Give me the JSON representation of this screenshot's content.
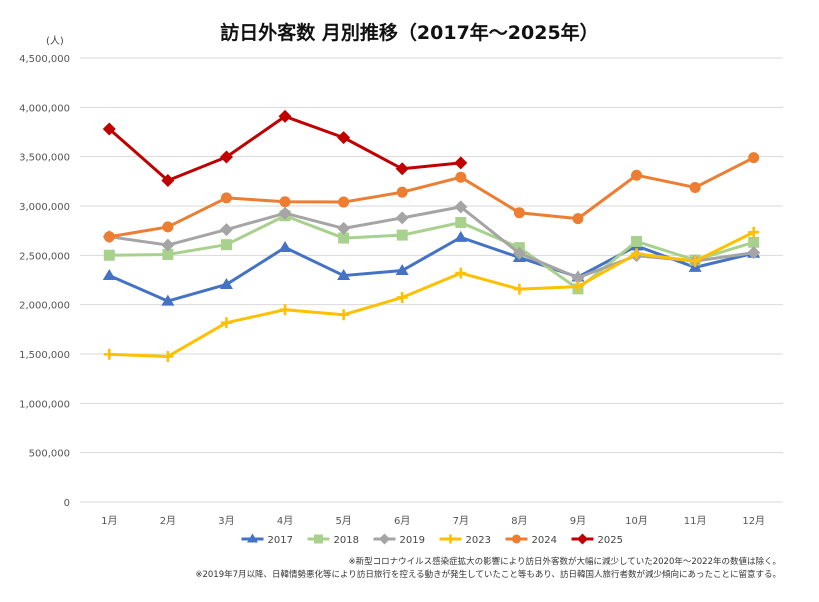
{
  "chart_data": {
    "type": "line",
    "title": "訪日外客数 月別推移（2017年～2025年）",
    "ylabel": "(人)",
    "categories": [
      "1月",
      "2月",
      "3月",
      "4月",
      "5月",
      "6月",
      "7月",
      "8月",
      "9月",
      "10月",
      "11月",
      "12月"
    ],
    "ylim": [
      0,
      4500000
    ],
    "yticks": [
      0,
      500000,
      1000000,
      1500000,
      2000000,
      2500000,
      3000000,
      3500000,
      4000000,
      4500000
    ],
    "ytick_labels": [
      "0",
      "500,000",
      "1,000,000",
      "1,500,000",
      "2,000,000",
      "2,500,000",
      "3,000,000",
      "3,500,000",
      "4,000,000",
      "4,500,000"
    ],
    "grid": true,
    "legend_position": "bottom",
    "series": [
      {
        "name": "2017",
        "color": "#4472C4",
        "marker": "triangle",
        "values": [
          2295000,
          2036000,
          2205000,
          2579000,
          2295000,
          2346000,
          2682000,
          2478000,
          2280000,
          2595000,
          2378000,
          2521000
        ]
      },
      {
        "name": "2018",
        "color": "#A9D18E",
        "marker": "square",
        "values": [
          2501000,
          2509000,
          2608000,
          2901000,
          2675000,
          2705000,
          2833000,
          2578000,
          2160000,
          2641000,
          2452000,
          2632000
        ]
      },
      {
        "name": "2019",
        "color": "#A5A5A5",
        "marker": "diamond",
        "values": [
          2689000,
          2604000,
          2761000,
          2927000,
          2773000,
          2880000,
          2991000,
          2520000,
          2273000,
          2497000,
          2441000,
          2527000
        ]
      },
      {
        "name": "2023",
        "color": "#FFC000",
        "marker": "plus",
        "values": [
          1497000,
          1475000,
          1817000,
          1949000,
          1898000,
          2073000,
          2320000,
          2157000,
          2183000,
          2516000,
          2441000,
          2734000
        ]
      },
      {
        "name": "2024",
        "color": "#ED7D31",
        "marker": "circle",
        "values": [
          2688000,
          2788000,
          3082000,
          3043000,
          3040000,
          3140000,
          3292000,
          2932000,
          2872000,
          3312000,
          3188000,
          3490000
        ]
      },
      {
        "name": "2025",
        "color": "#C00000",
        "marker": "diamond",
        "values": [
          3781000,
          3258000,
          3497000,
          3908000,
          3693000,
          3377000,
          3437000,
          null,
          null,
          null,
          null,
          null
        ]
      }
    ],
    "notes": [
      "※新型コロナウイルス感染症拡大の影響により訪日外客数が大幅に減少していた2020年～2022年の数値は除く。",
      "※2019年7月以降、日韓情勢悪化等により訪日旅行を控える動きが発生していたこと等もあり、訪日韓国人旅行者数が減少傾向にあったことに留意する。"
    ]
  }
}
